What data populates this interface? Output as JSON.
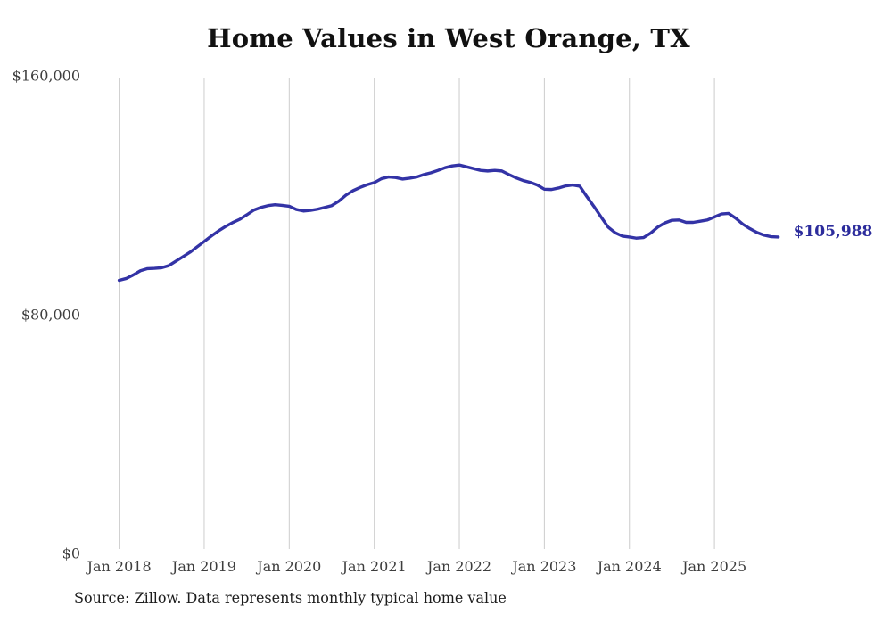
{
  "title": "Home Values in West Orange, TX",
  "source_note": "Source: Zillow. Data represents monthly typical home value",
  "end_label": "$105,988",
  "colors": {
    "line": "#3333a6",
    "end_label": "#2c2c9c",
    "grid": "#cccccc",
    "tick_label": "#3d3d3d",
    "title": "#111111",
    "source": "#1c1c1c",
    "background": "#ffffff"
  },
  "y_axis": {
    "ticks": [
      {
        "label": "$160,000",
        "value": 160000
      },
      {
        "label": "$80,000",
        "value": 80000
      },
      {
        "label": "$0",
        "value": 0
      }
    ]
  },
  "x_axis": {
    "ticks": [
      "Jan 2018",
      "Jan 2019",
      "Jan 2020",
      "Jan 2021",
      "Jan 2022",
      "Jan 2023",
      "Jan 2024",
      "Jan 2025"
    ]
  },
  "chart_data": {
    "type": "line",
    "title": "Home Values in West Orange, TX",
    "x_start": "2018-01",
    "x_end": "2025-10",
    "x_unit": "month",
    "x_tick_labels": [
      "Jan 2018",
      "Jan 2019",
      "Jan 2020",
      "Jan 2021",
      "Jan 2022",
      "Jan 2023",
      "Jan 2024",
      "Jan 2025"
    ],
    "ylim": [
      0,
      160000
    ],
    "y_tick_labels": [
      "$0",
      "$80,000",
      "$160,000"
    ],
    "grid": "vertical-only",
    "legend": "none",
    "series": [
      {
        "name": "Typical home value (USD)",
        "values": [
          91500,
          92100,
          93300,
          94700,
          95400,
          95500,
          95700,
          96400,
          97900,
          99400,
          100900,
          102700,
          104500,
          106300,
          108000,
          109500,
          110800,
          111900,
          113400,
          115000,
          115900,
          116500,
          116800,
          116600,
          116300,
          115200,
          114700,
          114900,
          115300,
          115900,
          116500,
          118000,
          120000,
          121500,
          122600,
          123500,
          124200,
          125500,
          126100,
          125900,
          125400,
          125700,
          126100,
          126900,
          127500,
          128300,
          129200,
          129800,
          130100,
          129500,
          128900,
          128300,
          128100,
          128300,
          128100,
          126900,
          125800,
          124900,
          124300,
          123400,
          122000,
          121900,
          122400,
          123100,
          123400,
          123000,
          119500,
          116200,
          112700,
          109300,
          107400,
          106300,
          106000,
          105600,
          105800,
          107300,
          109300,
          110700,
          111600,
          111700,
          110900,
          110900,
          111300,
          111700,
          112700,
          113700,
          113900,
          112300,
          110300,
          108800,
          107500,
          106600,
          106100,
          105988
        ]
      }
    ],
    "last_value": 105988,
    "last_value_label": "$105,988"
  }
}
